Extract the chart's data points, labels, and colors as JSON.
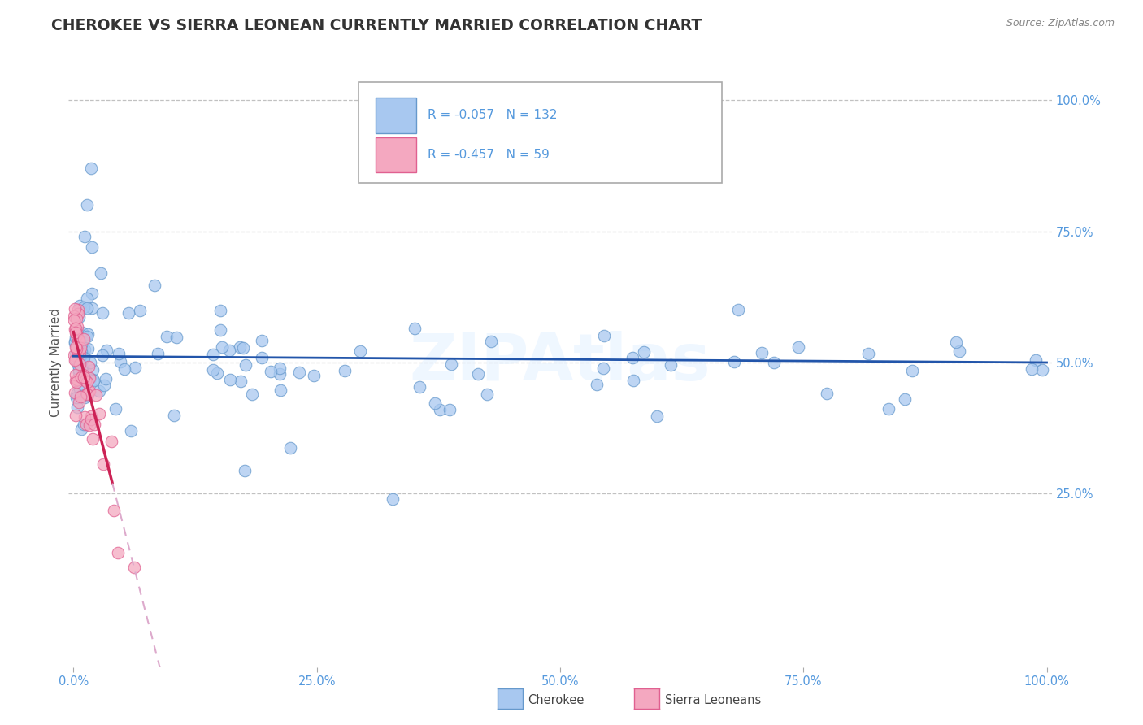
{
  "title": "CHEROKEE VS SIERRA LEONEAN CURRENTLY MARRIED CORRELATION CHART",
  "source_text": "Source: ZipAtlas.com",
  "ylabel": "Currently Married",
  "cherokee_color": "#A8C8F0",
  "cherokee_edge": "#6699CC",
  "sierra_color": "#F4A8C0",
  "sierra_edge": "#E06090",
  "trend_blue": "#2255AA",
  "trend_pink": "#CC2255",
  "trend_dashed_color": "#DDAACC",
  "R_cherokee": -0.057,
  "N_cherokee": 132,
  "R_sierra": -0.457,
  "N_sierra": 59,
  "legend_cherokee": "Cherokee",
  "legend_sierra": "Sierra Leoneans",
  "watermark": "ZIPAtlas",
  "background_color": "#FFFFFF",
  "grid_color": "#BBBBBB",
  "title_color": "#333333",
  "axis_label_color": "#555555",
  "tick_color": "#5599DD",
  "right_ytick_labels": [
    "100.0%",
    "75.0%",
    "50.0%",
    "25.0%"
  ],
  "right_ytick_vals": [
    1.0,
    0.75,
    0.5,
    0.25
  ]
}
